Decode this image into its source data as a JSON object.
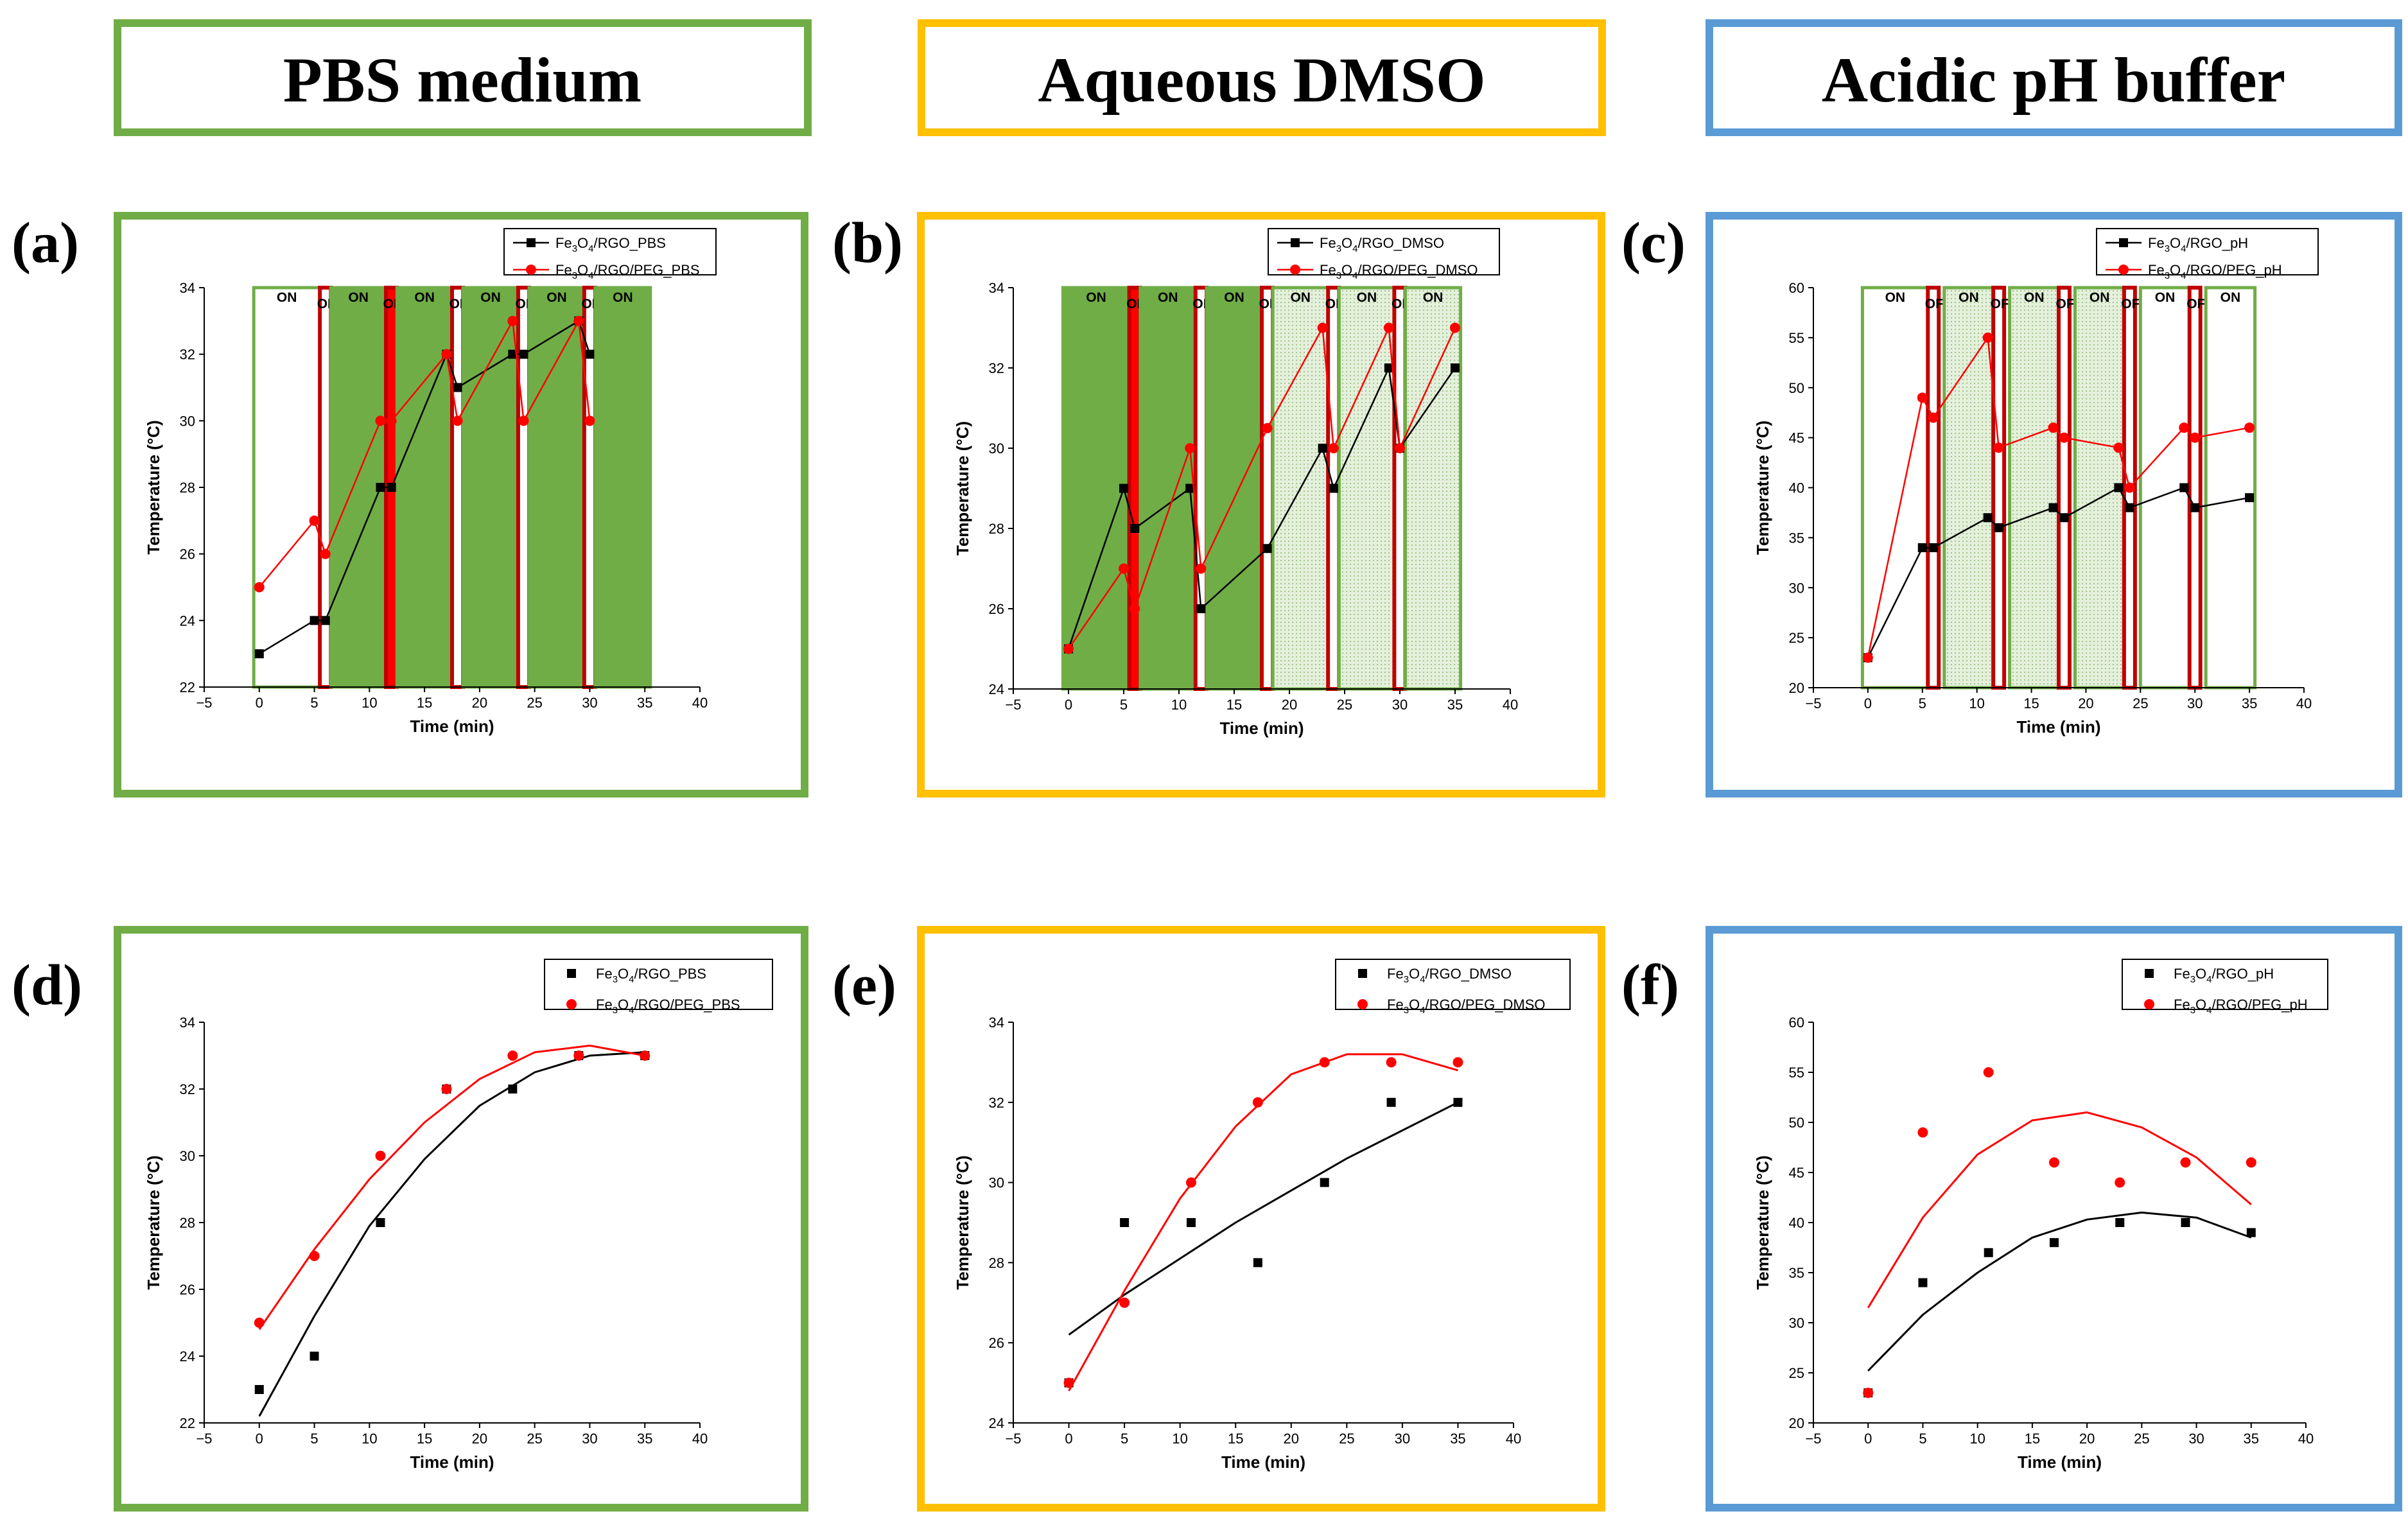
{
  "headers": [
    {
      "text": "PBS medium",
      "color": "#70AD47"
    },
    {
      "text": "Aqueous DMSO",
      "color": "#FFC000"
    },
    {
      "text": "Acidic pH buffer",
      "color": "#5B9BD5"
    }
  ],
  "colors": {
    "green_fill": "#70AD47",
    "stipple": "#DCEBD2",
    "off_outline": "#C00000",
    "off_fill": "#FF0000",
    "series_black": "#000000",
    "series_red": "#FF0000"
  },
  "chart_data": [
    {
      "panel": "(a)",
      "type": "line",
      "frame_color": "#70AD47",
      "xlabel": "Time (min)",
      "ylabel": "Temperature (°C)",
      "xlim": [
        -5,
        40
      ],
      "ylim": [
        22,
        34
      ],
      "xticks": [
        "−5",
        "0",
        "5",
        "10",
        "15",
        "20",
        "25",
        "30",
        "35",
        "40"
      ],
      "yticks": [
        "22",
        "24",
        "26",
        "28",
        "30",
        "32",
        "34"
      ],
      "states": [
        {
          "label": "ON",
          "x0": -0.5,
          "x1": 5.5,
          "kind": "on-white"
        },
        {
          "label": "OFF",
          "x0": 5.5,
          "x1": 6.5,
          "kind": "off"
        },
        {
          "label": "ON",
          "x0": 6.5,
          "x1": 11.5,
          "kind": "on-green"
        },
        {
          "label": "OFF",
          "x0": 11.5,
          "x1": 12.5,
          "kind": "off-fill"
        },
        {
          "label": "ON",
          "x0": 12.5,
          "x1": 17.5,
          "kind": "on-green"
        },
        {
          "label": "OFF",
          "x0": 17.5,
          "x1": 18.5,
          "kind": "off"
        },
        {
          "label": "ON",
          "x0": 18.5,
          "x1": 23.5,
          "kind": "on-green"
        },
        {
          "label": "OFF",
          "x0": 23.5,
          "x1": 24.5,
          "kind": "off"
        },
        {
          "label": "ON",
          "x0": 24.5,
          "x1": 29.5,
          "kind": "on-green"
        },
        {
          "label": "OFF",
          "x0": 29.5,
          "x1": 30.5,
          "kind": "off"
        },
        {
          "label": "ON",
          "x0": 30.5,
          "x1": 35.5,
          "kind": "on-green"
        }
      ],
      "series": [
        {
          "name": "Fe3O4/RGO_PBS",
          "color": "#000000",
          "marker": "square",
          "line": true,
          "x": [
            0,
            5,
            6,
            11,
            12,
            17,
            18,
            23,
            24,
            29,
            30
          ],
          "y": [
            23,
            24,
            24,
            28,
            28,
            32,
            31,
            32,
            32,
            33,
            32
          ]
        },
        {
          "name": "Fe3O4/RGO/PEG_PBS",
          "color": "#FF0000",
          "marker": "circle",
          "line": true,
          "x": [
            0,
            5,
            6,
            11,
            12,
            17,
            18,
            23,
            24,
            29,
            30
          ],
          "y": [
            25,
            27,
            26,
            30,
            30,
            32,
            30,
            33,
            30,
            33,
            30
          ]
        }
      ]
    },
    {
      "panel": "(b)",
      "type": "line",
      "frame_color": "#FFC000",
      "xlabel": "Time (min)",
      "ylabel": "Temperature (°C)",
      "xlim": [
        -5,
        40
      ],
      "ylim": [
        24,
        34
      ],
      "xticks": [
        "−5",
        "0",
        "5",
        "10",
        "15",
        "20",
        "25",
        "30",
        "35",
        "40"
      ],
      "yticks": [
        "24",
        "26",
        "28",
        "30",
        "32",
        "34"
      ],
      "states": [
        {
          "label": "ON",
          "x0": -0.5,
          "x1": 5.5,
          "kind": "on-green"
        },
        {
          "label": "OFF",
          "x0": 5.5,
          "x1": 6.5,
          "kind": "off-fill"
        },
        {
          "label": "ON",
          "x0": 6.5,
          "x1": 11.5,
          "kind": "on-green"
        },
        {
          "label": "OFF",
          "x0": 11.5,
          "x1": 12.5,
          "kind": "off"
        },
        {
          "label": "ON",
          "x0": 12.5,
          "x1": 17.5,
          "kind": "on-green"
        },
        {
          "label": "OFF",
          "x0": 17.5,
          "x1": 18.5,
          "kind": "off"
        },
        {
          "label": "ON",
          "x0": 18.5,
          "x1": 23.5,
          "kind": "on-stipple"
        },
        {
          "label": "OFF",
          "x0": 23.5,
          "x1": 24.5,
          "kind": "off"
        },
        {
          "label": "ON",
          "x0": 24.5,
          "x1": 29.5,
          "kind": "on-stipple"
        },
        {
          "label": "OFF",
          "x0": 29.5,
          "x1": 30.5,
          "kind": "off"
        },
        {
          "label": "ON",
          "x0": 30.5,
          "x1": 35.5,
          "kind": "on-stipple"
        }
      ],
      "series": [
        {
          "name": "Fe3O4/RGO_DMSO",
          "color": "#000000",
          "marker": "square",
          "line": true,
          "x": [
            0,
            5,
            6,
            11,
            12,
            18,
            23,
            24,
            29,
            30,
            35
          ],
          "y": [
            25,
            29,
            28,
            29,
            26,
            27.5,
            30,
            29,
            32,
            30,
            32
          ]
        },
        {
          "name": "Fe3O4/RGO/PEG_DMSO",
          "color": "#FF0000",
          "marker": "circle",
          "line": true,
          "x": [
            0,
            5,
            6,
            11,
            12,
            18,
            23,
            24,
            29,
            30,
            35
          ],
          "y": [
            25,
            27,
            26,
            30,
            27,
            30.5,
            33,
            30,
            33,
            30,
            33
          ]
        }
      ]
    },
    {
      "panel": "(c)",
      "type": "line",
      "frame_color": "#5B9BD5",
      "xlabel": "Time (min)",
      "ylabel": "Temperature (°C)",
      "xlim": [
        -5,
        40
      ],
      "ylim": [
        20,
        60
      ],
      "xticks": [
        "−5",
        "0",
        "5",
        "10",
        "15",
        "20",
        "25",
        "30",
        "35",
        "40"
      ],
      "yticks": [
        "20",
        "25",
        "30",
        "35",
        "40",
        "45",
        "50",
        "55",
        "60"
      ],
      "states": [
        {
          "label": "ON",
          "x0": -0.5,
          "x1": 5.5,
          "kind": "on-white"
        },
        {
          "label": "OFF",
          "x0": 5.5,
          "x1": 6.5,
          "kind": "off"
        },
        {
          "label": "ON",
          "x0": 7.0,
          "x1": 11.5,
          "kind": "on-stipple"
        },
        {
          "label": "OFF",
          "x0": 11.5,
          "x1": 12.5,
          "kind": "off"
        },
        {
          "label": "ON",
          "x0": 13.0,
          "x1": 17.5,
          "kind": "on-stipple"
        },
        {
          "label": "OFF",
          "x0": 17.5,
          "x1": 18.5,
          "kind": "off"
        },
        {
          "label": "ON",
          "x0": 19.0,
          "x1": 23.5,
          "kind": "on-stipple"
        },
        {
          "label": "OFF",
          "x0": 23.5,
          "x1": 24.5,
          "kind": "off"
        },
        {
          "label": "ON",
          "x0": 25.0,
          "x1": 29.5,
          "kind": "on-white"
        },
        {
          "label": "OFF",
          "x0": 29.5,
          "x1": 30.5,
          "kind": "off"
        },
        {
          "label": "ON",
          "x0": 31.0,
          "x1": 35.5,
          "kind": "on-white"
        }
      ],
      "series": [
        {
          "name": "Fe3O4/RGO_pH",
          "color": "#000000",
          "marker": "square",
          "line": true,
          "x": [
            0,
            5,
            6,
            11,
            12,
            17,
            18,
            23,
            24,
            29,
            30,
            35
          ],
          "y": [
            23,
            34,
            34,
            37,
            36,
            38,
            37,
            40,
            38,
            40,
            38,
            39
          ]
        },
        {
          "name": "Fe3O4/RGO/PEG_pH",
          "color": "#FF0000",
          "marker": "circle",
          "line": true,
          "x": [
            0,
            5,
            6,
            11,
            12,
            17,
            18,
            23,
            24,
            29,
            30,
            35
          ],
          "y": [
            23,
            49,
            47,
            55,
            44,
            46,
            45,
            44,
            40,
            46,
            45,
            46
          ]
        }
      ]
    },
    {
      "panel": "(d)",
      "type": "scatter",
      "frame_color": "#70AD47",
      "xlabel": "Time (min)",
      "ylabel": "Temperature (°C)",
      "xlim": [
        -5,
        40
      ],
      "ylim": [
        22,
        34
      ],
      "xticks": [
        "−5",
        "0",
        "5",
        "10",
        "15",
        "20",
        "25",
        "30",
        "35",
        "40"
      ],
      "yticks": [
        "22",
        "24",
        "26",
        "28",
        "30",
        "32",
        "34"
      ],
      "series": [
        {
          "name": "Fe3O4/RGO_PBS",
          "color": "#000000",
          "marker": "square",
          "line": false,
          "x": [
            0,
            5,
            11,
            17,
            23,
            29,
            35
          ],
          "y": [
            23,
            24,
            28,
            32,
            32,
            33,
            33
          ],
          "fit": {
            "x": [
              0,
              5,
              10,
              15,
              20,
              25,
              30,
              35
            ],
            "y": [
              22.2,
              25.2,
              27.9,
              29.9,
              31.5,
              32.5,
              33.0,
              33.1
            ]
          }
        },
        {
          "name": "Fe3O4/RGO/PEG_PBS",
          "color": "#FF0000",
          "marker": "circle",
          "line": false,
          "x": [
            0,
            5,
            11,
            17,
            23,
            29,
            35
          ],
          "y": [
            25,
            27,
            30,
            32,
            33,
            33,
            33
          ],
          "fit": {
            "x": [
              0,
              5,
              10,
              15,
              20,
              25,
              30,
              35
            ],
            "y": [
              24.8,
              27.2,
              29.3,
              31.0,
              32.3,
              33.1,
              33.3,
              33.0
            ]
          }
        }
      ]
    },
    {
      "panel": "(e)",
      "type": "scatter",
      "frame_color": "#FFC000",
      "xlabel": "Time (min)",
      "ylabel": "Temperature (°C)",
      "xlim": [
        -5,
        40
      ],
      "ylim": [
        24,
        34
      ],
      "xticks": [
        "−5",
        "0",
        "5",
        "10",
        "15",
        "20",
        "25",
        "30",
        "35",
        "40"
      ],
      "yticks": [
        "24",
        "26",
        "28",
        "30",
        "32",
        "34"
      ],
      "series": [
        {
          "name": "Fe3O4/RGO_DMSO",
          "color": "#000000",
          "marker": "square",
          "line": false,
          "x": [
            0,
            5,
            11,
            17,
            23,
            29,
            35
          ],
          "y": [
            25,
            29,
            29,
            28,
            30,
            32,
            32
          ],
          "fit": {
            "x": [
              0,
              5,
              10,
              15,
              20,
              25,
              30,
              35
            ],
            "y": [
              26.2,
              27.2,
              28.1,
              29.0,
              29.8,
              30.6,
              31.3,
              32.0
            ]
          }
        },
        {
          "name": "Fe3O4/RGO/PEG_DMSO",
          "color": "#FF0000",
          "marker": "circle",
          "line": false,
          "x": [
            0,
            5,
            11,
            17,
            23,
            29,
            35
          ],
          "y": [
            25,
            27,
            30,
            32,
            33,
            33,
            33
          ],
          "fit": {
            "x": [
              0,
              5,
              10,
              15,
              20,
              25,
              30,
              35
            ],
            "y": [
              24.8,
              27.3,
              29.6,
              31.4,
              32.7,
              33.2,
              33.2,
              32.8
            ]
          }
        }
      ]
    },
    {
      "panel": "(f)",
      "type": "scatter",
      "frame_color": "#5B9BD5",
      "xlabel": "Time (min)",
      "ylabel": "Temperature (°C)",
      "xlim": [
        -5,
        40
      ],
      "ylim": [
        20,
        60
      ],
      "xticks": [
        "−5",
        "0",
        "5",
        "10",
        "15",
        "20",
        "25",
        "30",
        "35",
        "40"
      ],
      "yticks": [
        "20",
        "25",
        "30",
        "35",
        "40",
        "45",
        "50",
        "55",
        "60"
      ],
      "series": [
        {
          "name": "Fe3O4/RGO_pH",
          "color": "#000000",
          "marker": "square",
          "line": false,
          "x": [
            0,
            5,
            11,
            17,
            23,
            29,
            35
          ],
          "y": [
            23,
            34,
            37,
            38,
            40,
            40,
            39
          ],
          "fit": {
            "x": [
              0,
              5,
              10,
              15,
              20,
              25,
              30,
              35
            ],
            "y": [
              25.2,
              30.8,
              35.0,
              38.5,
              40.3,
              41.0,
              40.5,
              38.5
            ]
          }
        },
        {
          "name": "Fe3O4/RGO/PEG_pH",
          "color": "#FF0000",
          "marker": "circle",
          "line": false,
          "x": [
            0,
            5,
            11,
            17,
            23,
            29,
            35
          ],
          "y": [
            23,
            49,
            55,
            46,
            44,
            46,
            46
          ],
          "fit": {
            "x": [
              0,
              5,
              10,
              15,
              20,
              25,
              30,
              35
            ],
            "y": [
              31.5,
              40.5,
              46.8,
              50.2,
              51.0,
              49.5,
              46.5,
              41.8
            ]
          }
        }
      ]
    }
  ]
}
